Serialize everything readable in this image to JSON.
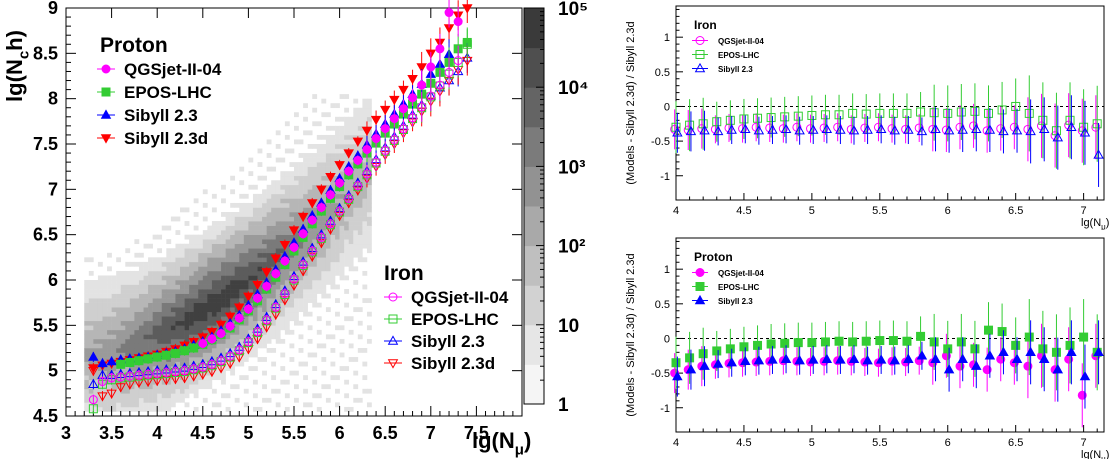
{
  "chart_data": [
    {
      "type": "scatter",
      "xlabel": "lg(N_μ)",
      "ylabel": "lg(N_ch)",
      "xlim": [
        3,
        8
      ],
      "ylim": [
        4.5,
        9
      ],
      "xticks": [
        "3",
        "3.5",
        "4",
        "4.5",
        "5",
        "5.5",
        "6",
        "6.5",
        "7",
        "7.5"
      ],
      "yticks": [
        "4.5",
        "5",
        "5.5",
        "6",
        "6.5",
        "7",
        "7.5",
        "8",
        "8.5",
        "9"
      ],
      "colorbar": {
        "scale": "log",
        "range": [
          1,
          100000
        ],
        "tick_labels": [
          "1",
          "10",
          "10²",
          "10³",
          "10⁴",
          "10⁵"
        ]
      },
      "legends": [
        {
          "title": "Proton",
          "entries": [
            {
              "name": "QGSjet-II-04",
              "color": "#ff00ff",
              "marker": "circle-filled"
            },
            {
              "name": "EPOS-LHC",
              "color": "#33cc33",
              "marker": "square-filled"
            },
            {
              "name": "Sibyll 2.3",
              "color": "#0000ff",
              "marker": "triangle-up-filled"
            },
            {
              "name": "Sibyll 2.3d",
              "color": "#ff0000",
              "marker": "triangle-down-filled"
            }
          ]
        },
        {
          "title": "Iron",
          "entries": [
            {
              "name": "QGSjet-II-04",
              "color": "#ff00ff",
              "marker": "circle-open"
            },
            {
              "name": "EPOS-LHC",
              "color": "#33cc33",
              "marker": "square-open"
            },
            {
              "name": "Sibyll 2.3",
              "color": "#0000ff",
              "marker": "triangle-up-open"
            },
            {
              "name": "Sibyll 2.3d",
              "color": "#ff0000",
              "marker": "triangle-down-open"
            }
          ]
        }
      ],
      "x": [
        3.3,
        3.4,
        3.5,
        3.6,
        3.7,
        3.8,
        3.9,
        4.0,
        4.1,
        4.2,
        4.3,
        4.4,
        4.5,
        4.6,
        4.7,
        4.8,
        4.9,
        5.0,
        5.1,
        5.2,
        5.3,
        5.4,
        5.5,
        5.6,
        5.7,
        5.8,
        5.9,
        6.0,
        6.1,
        6.2,
        6.3,
        6.4,
        6.5,
        6.6,
        6.7,
        6.8,
        6.9,
        7.0,
        7.1,
        7.2,
        7.3,
        7.4,
        7.5
      ],
      "series": [
        {
          "name": "Proton Sibyll 2.3d",
          "values": [
            5.03,
            5.06,
            5.08,
            5.1,
            5.12,
            5.14,
            5.16,
            5.18,
            5.21,
            5.24,
            5.28,
            5.32,
            5.37,
            5.43,
            5.51,
            5.6,
            5.7,
            5.82,
            5.95,
            6.09,
            6.24,
            6.39,
            6.55,
            6.7,
            6.85,
            7.0,
            7.14,
            7.27,
            7.4,
            7.53,
            7.65,
            7.77,
            7.88,
            7.99,
            8.1,
            8.22,
            8.35,
            8.5,
            8.62,
            8.78,
            8.92,
            9.0,
            null
          ]
        },
        {
          "name": "Proton Sibyll 2.3",
          "values": [
            5.15,
            5.08,
            5.1,
            5.12,
            5.13,
            5.14,
            5.15,
            5.17,
            5.19,
            5.21,
            5.24,
            5.28,
            5.32,
            5.37,
            5.44,
            5.52,
            5.61,
            5.72,
            5.84,
            5.97,
            6.11,
            6.26,
            6.41,
            6.56,
            6.71,
            6.85,
            6.99,
            7.12,
            7.25,
            7.37,
            7.49,
            7.61,
            7.72,
            7.83,
            7.94,
            8.05,
            8.16,
            8.27,
            8.38,
            8.49,
            null,
            null,
            null
          ]
        },
        {
          "name": "Proton EPOS-LHC",
          "values": [
            null,
            null,
            null,
            5.07,
            5.09,
            5.11,
            5.13,
            5.15,
            5.17,
            5.19,
            5.22,
            5.25,
            5.29,
            5.34,
            5.4,
            5.47,
            5.56,
            5.66,
            5.77,
            5.9,
            6.03,
            6.17,
            6.32,
            6.47,
            6.62,
            6.76,
            6.9,
            7.03,
            7.16,
            7.28,
            7.4,
            7.51,
            7.62,
            7.72,
            7.83,
            7.94,
            8.05,
            8.17,
            8.29,
            8.4,
            8.55,
            8.62,
            null
          ]
        },
        {
          "name": "Proton QGSjet-II-04",
          "values": [
            null,
            null,
            null,
            null,
            null,
            null,
            null,
            null,
            null,
            null,
            null,
            null,
            5.3,
            5.35,
            5.41,
            5.49,
            5.58,
            5.68,
            5.8,
            5.93,
            6.07,
            6.21,
            6.36,
            6.51,
            6.66,
            6.8,
            6.94,
            7.07,
            7.2,
            7.32,
            7.44,
            7.56,
            7.67,
            7.78,
            7.89,
            8.01,
            8.15,
            8.35,
            8.55,
            8.95,
            8.85,
            null,
            null
          ]
        },
        {
          "name": "Iron Sibyll 2.3",
          "values": [
            4.85,
            4.95,
            4.95,
            4.96,
            4.97,
            4.98,
            4.99,
            5.0,
            5.01,
            5.02,
            5.03,
            5.05,
            5.07,
            5.1,
            5.14,
            5.19,
            5.26,
            5.35,
            5.46,
            5.59,
            5.73,
            5.88,
            6.04,
            6.2,
            6.35,
            6.5,
            6.65,
            6.79,
            6.93,
            7.07,
            7.2,
            7.33,
            7.46,
            7.58,
            7.7,
            7.82,
            7.93,
            8.03,
            8.12,
            8.2,
            8.3,
            8.45,
            null
          ]
        },
        {
          "name": "Iron Sibyll 2.3d",
          "values": [
            5.0,
            4.72,
            4.75,
            4.82,
            4.85,
            4.87,
            4.88,
            4.89,
            4.9,
            4.91,
            4.92,
            4.94,
            4.96,
            4.99,
            5.03,
            5.08,
            5.15,
            5.24,
            5.35,
            5.48,
            5.62,
            5.78,
            5.94,
            6.1,
            6.26,
            6.41,
            6.56,
            6.71,
            6.85,
            6.99,
            7.12,
            7.25,
            7.38,
            7.5,
            7.62,
            7.74,
            7.86,
            7.97,
            8.08,
            8.2,
            8.32,
            8.42,
            null
          ]
        },
        {
          "name": "Iron EPOS-LHC",
          "values": [
            4.58,
            4.85,
            4.9,
            4.92,
            4.93,
            4.94,
            4.95,
            4.96,
            4.97,
            4.98,
            4.99,
            5.01,
            5.03,
            5.06,
            5.1,
            5.15,
            5.22,
            5.31,
            5.42,
            5.55,
            5.69,
            5.84,
            6.0,
            6.16,
            6.31,
            6.46,
            6.61,
            6.75,
            6.89,
            7.03,
            7.16,
            7.29,
            7.42,
            7.54,
            7.66,
            7.78,
            7.9,
            8.02,
            8.14,
            8.27,
            8.4,
            8.6,
            null
          ]
        },
        {
          "name": "Iron QGSjet-II-04",
          "values": [
            4.68,
            4.88,
            4.92,
            4.93,
            4.94,
            4.95,
            4.96,
            4.97,
            4.98,
            4.99,
            5.0,
            5.02,
            5.04,
            5.07,
            5.11,
            5.16,
            5.23,
            5.32,
            5.43,
            5.56,
            5.7,
            5.85,
            6.01,
            6.17,
            6.32,
            6.47,
            6.62,
            6.76,
            6.9,
            7.04,
            7.17,
            7.3,
            7.43,
            7.55,
            7.67,
            7.79,
            7.91,
            8.03,
            8.15,
            8.29,
            8.42,
            null,
            null
          ]
        }
      ]
    },
    {
      "type": "scatter",
      "panel": "iron-ratio",
      "title": "Iron",
      "xlabel": "lg(N_μ)",
      "ylabel": "(Models - Sibyll 2.3d) / Sibyll 2.3d",
      "xlim": [
        4,
        7.15
      ],
      "ylim": [
        -1.35,
        1.45
      ],
      "xticks": [
        "4",
        "4.5",
        "5",
        "5.5",
        "6",
        "6.5",
        "7"
      ],
      "yticks": [
        "-1",
        "-0.5",
        "0",
        "0.5",
        "1"
      ],
      "x": [
        4.0,
        4.1,
        4.2,
        4.3,
        4.4,
        4.5,
        4.6,
        4.7,
        4.8,
        4.9,
        5.0,
        5.1,
        5.2,
        5.3,
        5.4,
        5.5,
        5.6,
        5.7,
        5.8,
        5.9,
        6.0,
        6.1,
        6.2,
        6.3,
        6.4,
        6.5,
        6.6,
        6.7,
        6.8,
        6.9,
        7.0,
        7.1
      ],
      "series": [
        {
          "name": "QGSjet-II-04",
          "color": "#ff00ff",
          "marker": "circle-open",
          "values": [
            -0.33,
            -0.34,
            -0.32,
            -0.33,
            -0.31,
            -0.32,
            -0.3,
            -0.31,
            -0.32,
            -0.3,
            -0.32,
            -0.31,
            -0.3,
            -0.33,
            -0.31,
            -0.3,
            -0.32,
            -0.33,
            -0.31,
            -0.33,
            -0.34,
            -0.3,
            -0.28,
            -0.35,
            -0.32,
            -0.3,
            -0.33,
            -0.28,
            -0.42,
            -0.27,
            -0.35,
            -0.3
          ]
        },
        {
          "name": "EPOS-LHC",
          "color": "#33cc33",
          "marker": "square-open",
          "values": [
            -0.3,
            -0.27,
            -0.25,
            -0.22,
            -0.2,
            -0.18,
            -0.17,
            -0.16,
            -0.15,
            -0.14,
            -0.13,
            -0.12,
            -0.12,
            -0.1,
            -0.11,
            -0.1,
            -0.1,
            -0.1,
            -0.08,
            -0.09,
            -0.1,
            -0.08,
            -0.07,
            -0.1,
            -0.05,
            0.0,
            -0.1,
            -0.2,
            -0.35,
            -0.2,
            -0.3,
            -0.25
          ]
        },
        {
          "name": "Sibyll 2.3",
          "color": "#0000ff",
          "marker": "triangle-up-open",
          "values": [
            -0.38,
            -0.36,
            -0.35,
            -0.36,
            -0.34,
            -0.33,
            -0.35,
            -0.34,
            -0.33,
            -0.35,
            -0.34,
            -0.33,
            -0.34,
            -0.35,
            -0.34,
            -0.33,
            -0.35,
            -0.34,
            -0.36,
            -0.33,
            -0.35,
            -0.34,
            -0.33,
            -0.34,
            -0.36,
            -0.35,
            -0.36,
            -0.33,
            -0.45,
            -0.3,
            -0.38,
            -0.7
          ]
        }
      ]
    },
    {
      "type": "scatter",
      "panel": "proton-ratio",
      "title": "Proton",
      "xlabel": "lg(N_μ)",
      "ylabel": "(Models - Sibyll 2.3d) / Sibyll 2.3d",
      "xlim": [
        4,
        7.15
      ],
      "ylim": [
        -1.35,
        1.45
      ],
      "xticks": [
        "4",
        "4.5",
        "5",
        "5.5",
        "6",
        "6.5",
        "7"
      ],
      "yticks": [
        "-1",
        "-0.5",
        "0",
        "0.5",
        "1"
      ],
      "x": [
        4.0,
        4.1,
        4.2,
        4.3,
        4.4,
        4.5,
        4.6,
        4.7,
        4.8,
        4.9,
        5.0,
        5.1,
        5.2,
        5.3,
        5.4,
        5.5,
        5.6,
        5.7,
        5.8,
        5.9,
        6.0,
        6.1,
        6.2,
        6.3,
        6.4,
        6.5,
        6.6,
        6.7,
        6.8,
        6.9,
        7.0,
        7.1
      ],
      "series": [
        {
          "name": "QGSjet-II-04",
          "color": "#ff00ff",
          "marker": "circle-filled",
          "values": [
            -0.5,
            -0.45,
            -0.4,
            -0.38,
            -0.36,
            -0.35,
            -0.34,
            -0.33,
            -0.32,
            -0.33,
            -0.34,
            -0.33,
            -0.32,
            -0.33,
            -0.34,
            -0.35,
            -0.33,
            -0.34,
            -0.32,
            -0.35,
            -0.25,
            -0.4,
            -0.38,
            -0.45,
            -0.3,
            -0.35,
            -0.4,
            -0.25,
            -0.45,
            -0.3,
            -0.82,
            -0.25
          ]
        },
        {
          "name": "EPOS-LHC",
          "color": "#33cc33",
          "marker": "square-filled",
          "values": [
            -0.35,
            -0.28,
            -0.22,
            -0.18,
            -0.15,
            -0.12,
            -0.1,
            -0.08,
            -0.07,
            -0.06,
            -0.06,
            -0.05,
            -0.04,
            -0.05,
            -0.04,
            -0.03,
            -0.03,
            -0.04,
            0.03,
            -0.05,
            -0.15,
            -0.05,
            -0.15,
            0.12,
            0.1,
            -0.1,
            0.02,
            -0.15,
            -0.2,
            -0.1,
            0.02,
            -0.2
          ]
        },
        {
          "name": "Sibyll 2.3",
          "color": "#0000ff",
          "marker": "triangle-up-filled",
          "values": [
            -0.55,
            -0.45,
            -0.4,
            -0.37,
            -0.35,
            -0.33,
            -0.32,
            -0.31,
            -0.3,
            -0.32,
            -0.31,
            -0.3,
            -0.31,
            -0.3,
            -0.32,
            -0.31,
            -0.32,
            -0.3,
            -0.25,
            -0.3,
            -0.45,
            -0.3,
            -0.4,
            -0.25,
            -0.2,
            -0.3,
            -0.2,
            -0.3,
            -0.45,
            -0.2,
            -0.55,
            -0.2
          ]
        }
      ]
    }
  ]
}
